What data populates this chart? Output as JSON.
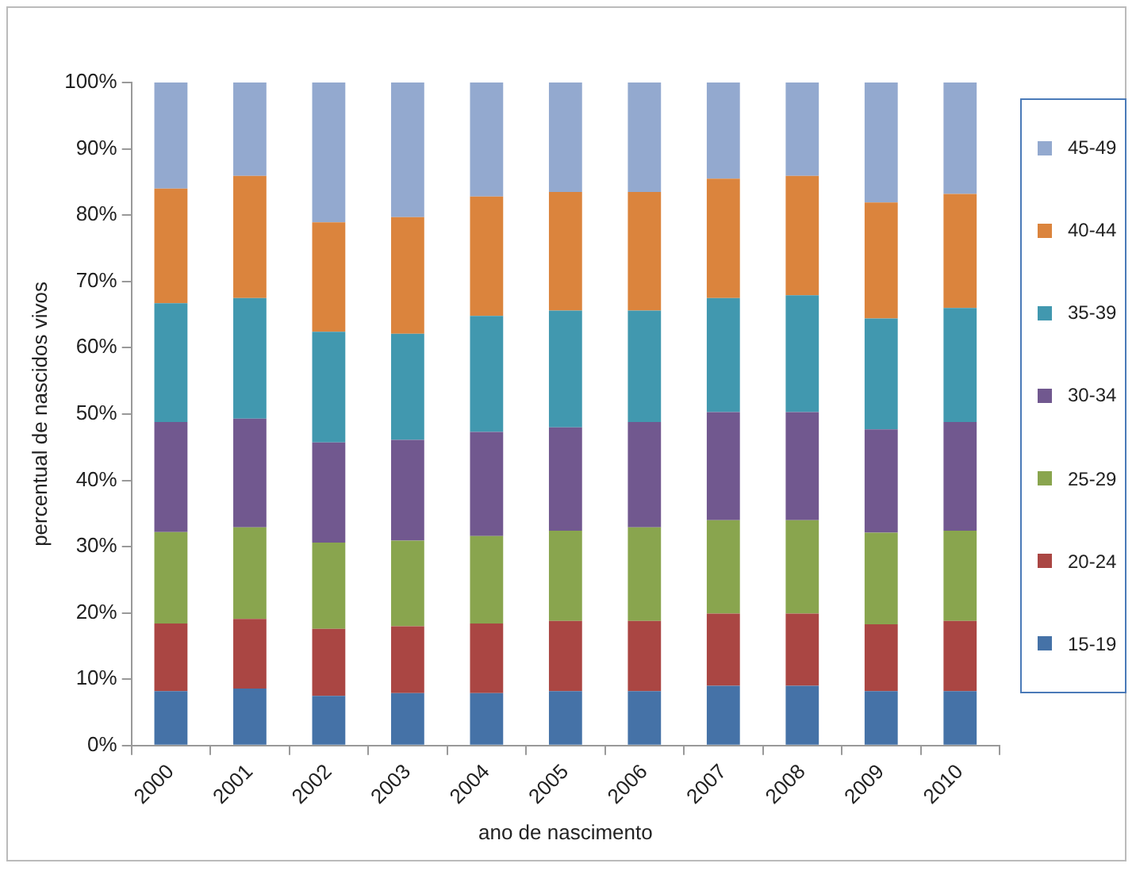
{
  "chart_data": {
    "type": "bar",
    "stacked": true,
    "xlabel": "ano de nascimento",
    "ylabel": "percentual de nascidos vivos",
    "categories": [
      "2000",
      "2001",
      "2002",
      "2003",
      "2004",
      "2005",
      "2006",
      "2007",
      "2008",
      "2009",
      "2010"
    ],
    "series": [
      {
        "name": "15-19",
        "color": "#4572a7",
        "values": [
          8.2,
          8.6,
          7.5,
          7.9,
          7.9,
          8.2,
          8.2,
          9.0,
          9.0,
          8.2,
          8.2
        ]
      },
      {
        "name": "20-24",
        "color": "#aa4643",
        "values": [
          10.2,
          10.5,
          10.1,
          10.1,
          10.5,
          10.6,
          10.6,
          10.9,
          10.9,
          10.1,
          10.6
        ]
      },
      {
        "name": "25-29",
        "color": "#89a54e",
        "values": [
          13.8,
          13.8,
          13.0,
          12.9,
          13.2,
          13.6,
          14.1,
          14.1,
          14.1,
          13.8,
          13.6
        ]
      },
      {
        "name": "30-34",
        "color": "#71588f",
        "values": [
          16.6,
          16.4,
          15.1,
          15.2,
          15.7,
          15.6,
          15.9,
          16.3,
          16.3,
          15.6,
          16.4
        ]
      },
      {
        "name": "35-39",
        "color": "#4198af",
        "values": [
          17.9,
          18.2,
          16.7,
          16.0,
          17.5,
          17.6,
          16.8,
          17.2,
          17.6,
          16.7,
          17.2
        ]
      },
      {
        "name": "40-44",
        "color": "#db843d",
        "values": [
          17.3,
          18.4,
          16.5,
          17.6,
          18.0,
          17.9,
          17.9,
          18.0,
          18.0,
          17.5,
          17.2
        ]
      },
      {
        "name": "45-49",
        "color": "#93a9cf",
        "values": [
          16.0,
          14.1,
          21.1,
          20.3,
          17.2,
          16.5,
          16.5,
          14.5,
          14.1,
          18.1,
          16.8
        ]
      }
    ],
    "ylim": [
      0,
      100
    ],
    "yticks": [
      {
        "value": 0,
        "label": "0%"
      },
      {
        "value": 10,
        "label": "10%"
      },
      {
        "value": 20,
        "label": "20%"
      },
      {
        "value": 30,
        "label": "30%"
      },
      {
        "value": 40,
        "label": "40%"
      },
      {
        "value": 50,
        "label": "50%"
      },
      {
        "value": 60,
        "label": "60%"
      },
      {
        "value": 70,
        "label": "70%"
      },
      {
        "value": 80,
        "label": "80%"
      },
      {
        "value": 90,
        "label": "90%"
      },
      {
        "value": 100,
        "label": "100%"
      }
    ],
    "grid": false,
    "legend": "right"
  }
}
